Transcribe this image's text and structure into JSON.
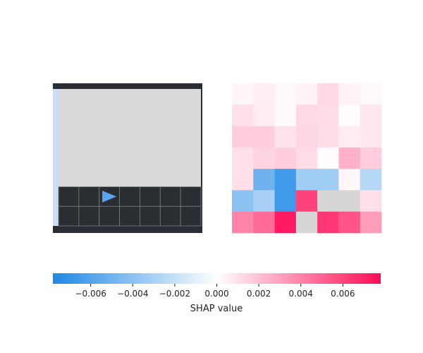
{
  "chart_data": [
    {
      "type": "image",
      "panel": "left",
      "description_grid": {
        "rows": 7,
        "cols": 7,
        "agent_marker": {
          "row": 5,
          "col": 2,
          "direction": "right"
        },
        "filled_rows": [
          5,
          6
        ]
      },
      "colors": {
        "frame": "#292d33",
        "floor": "#d9d9d9",
        "cell": "#2a2e33",
        "cell_line": "#7a7d80",
        "edge_strip": "#c9dff7",
        "agent": "#5aa4f2"
      }
    },
    {
      "type": "heatmap",
      "panel": "right",
      "rows": 7,
      "cols": 7,
      "values": [
        [
          0.0003,
          0.0005,
          0.0002,
          0.0004,
          0.0012,
          0.0004,
          0.0002
        ],
        [
          0.001,
          0.0006,
          0.0002,
          0.0012,
          0.0011,
          0.0001,
          0.0008
        ],
        [
          0.0016,
          0.0016,
          0.0009,
          0.0013,
          0.0011,
          0.0006,
          0.0008
        ],
        [
          0.001,
          0.0014,
          0.0016,
          0.0011,
          0.0001,
          0.0025,
          0.0016
        ],
        [
          0.001,
          -0.005,
          -0.0066,
          -0.0033,
          -0.0033,
          0.0003,
          -0.0026
        ],
        [
          -0.004,
          -0.003,
          -0.0066,
          0.0061,
          null,
          null,
          0.001
        ],
        [
          0.004,
          0.0048,
          0.0074,
          null,
          0.0064,
          0.0055,
          0.0032
        ]
      ],
      "overlay_alpha": 0.7
    },
    {
      "type": "colorbar",
      "xlabel": "SHAP value",
      "range": [
        -0.0078,
        0.0078
      ],
      "ticks": [
        -0.006,
        -0.004,
        -0.002,
        0.0,
        0.002,
        0.004,
        0.006
      ],
      "tick_labels": [
        "−0.006",
        "−0.004",
        "−0.002",
        "0.000",
        "0.002",
        "0.004",
        "0.006"
      ],
      "colors": {
        "negative": "#1e88e5",
        "zero": "#ffffff",
        "positive": "#ff0d57"
      }
    }
  ]
}
